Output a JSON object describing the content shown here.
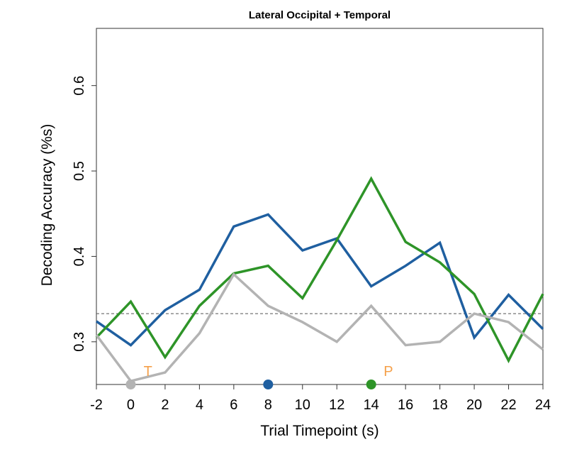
{
  "chart_data": {
    "type": "line",
    "title": "Lateral Occipital + Temporal",
    "xlabel": "Trial Timepoint (s)",
    "ylabel": "Decoding Accuracy (%s)",
    "xlim": [
      -2,
      24
    ],
    "ylim": [
      0.25,
      0.667
    ],
    "x": [
      -2,
      0,
      2,
      4,
      6,
      8,
      10,
      12,
      14,
      16,
      18,
      20,
      22,
      24
    ],
    "x_ticks": [
      -2,
      0,
      2,
      4,
      6,
      8,
      10,
      12,
      14,
      16,
      18,
      20,
      22,
      24
    ],
    "y_ticks": [
      0.3,
      0.4,
      0.5,
      0.6
    ],
    "grid": false,
    "chance_level": 0.333,
    "series": [
      {
        "color": "#1f5fa0",
        "values": [
          0.324,
          0.296,
          0.337,
          0.361,
          0.435,
          0.449,
          0.407,
          0.421,
          0.365,
          0.389,
          0.416,
          0.305,
          0.355,
          0.315
        ]
      },
      {
        "color": "#2e9428",
        "values": [
          0.305,
          0.347,
          0.282,
          0.342,
          0.38,
          0.389,
          0.351,
          0.419,
          0.491,
          0.417,
          0.393,
          0.356,
          0.278,
          0.356
        ]
      },
      {
        "color": "#b3b3b3",
        "values": [
          0.308,
          0.254,
          0.264,
          0.31,
          0.379,
          0.342,
          0.323,
          0.3,
          0.342,
          0.296,
          0.3,
          0.333,
          0.323,
          0.291
        ]
      }
    ],
    "markers": [
      {
        "x": 0,
        "color": "#b3b3b3",
        "label": ""
      },
      {
        "x": 8,
        "color": "#1f5fa0",
        "label": ""
      },
      {
        "x": 14,
        "color": "#2e9428",
        "label": ""
      }
    ],
    "annotations": [
      {
        "text": "T",
        "x": 1,
        "color": "#f5a04a"
      },
      {
        "text": "P",
        "x": 15,
        "color": "#f5a04a"
      }
    ]
  }
}
